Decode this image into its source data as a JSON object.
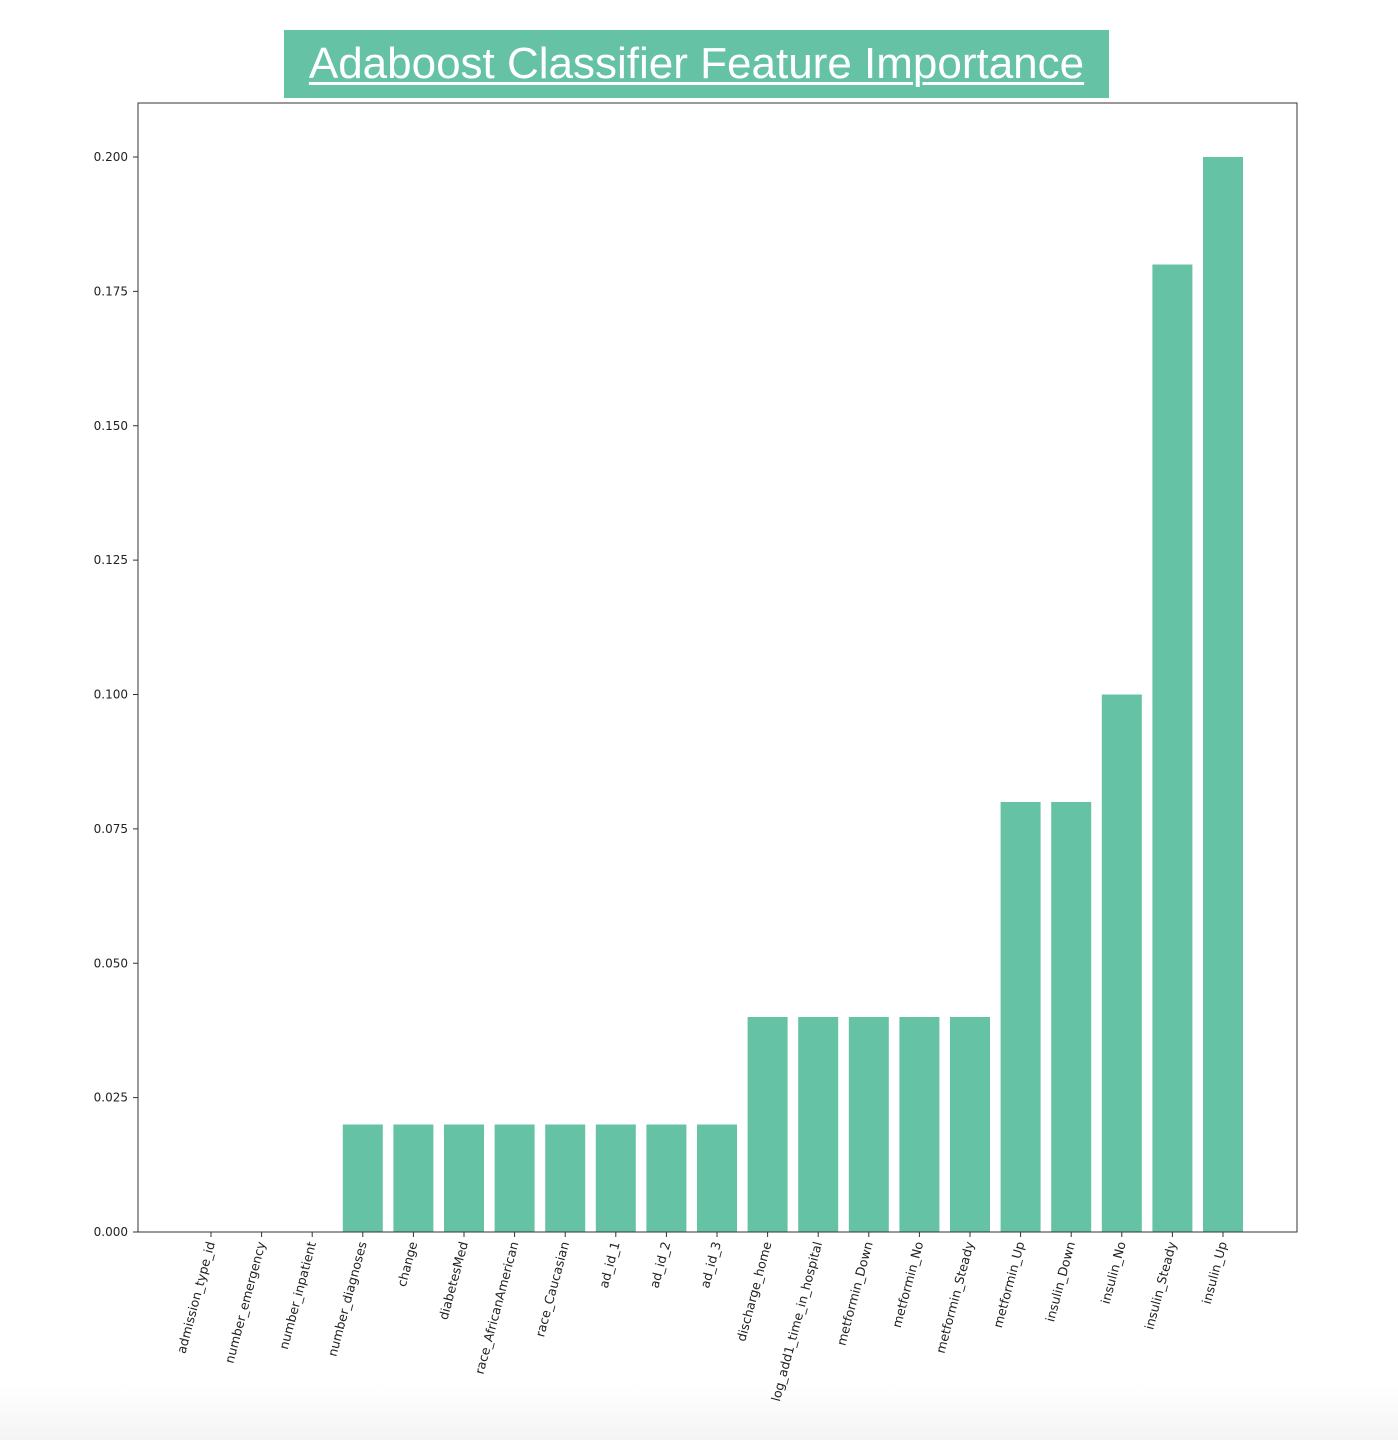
{
  "title": "Adaboost Classifier Feature Importance",
  "colors": {
    "bar": "#66c2a5",
    "title_bg": "#66c2a5",
    "title_text": "#ffffff",
    "axis": "#333333"
  },
  "chart_data": {
    "type": "bar",
    "title": "Adaboost Classifier Feature Importance",
    "xlabel": "",
    "ylabel": "",
    "ylim": [
      0,
      0.21
    ],
    "yticks": [
      "0.000",
      "0.025",
      "0.050",
      "0.075",
      "0.100",
      "0.125",
      "0.150",
      "0.175",
      "0.200"
    ],
    "grid": false,
    "categories": [
      "admission_type_id",
      "number_emergency",
      "number_inpatient",
      "number_diagnoses",
      "change",
      "diabetesMed",
      "race_AfricanAmerican",
      "race_Caucasian",
      "ad_id_1",
      "ad_id_2",
      "ad_id_3",
      "discharge_home",
      "log_add1_time_in_hospital",
      "metformin_Down",
      "metformin_No",
      "metformin_Steady",
      "metformin_Up",
      "insulin_Down",
      "insulin_No",
      "insulin_Steady",
      "insulin_Up"
    ],
    "values": [
      0,
      0,
      0,
      0.02,
      0.02,
      0.02,
      0.02,
      0.02,
      0.02,
      0.02,
      0.02,
      0.04,
      0.04,
      0.04,
      0.04,
      0.04,
      0.08,
      0.08,
      0.1,
      0.18,
      0.2
    ]
  }
}
